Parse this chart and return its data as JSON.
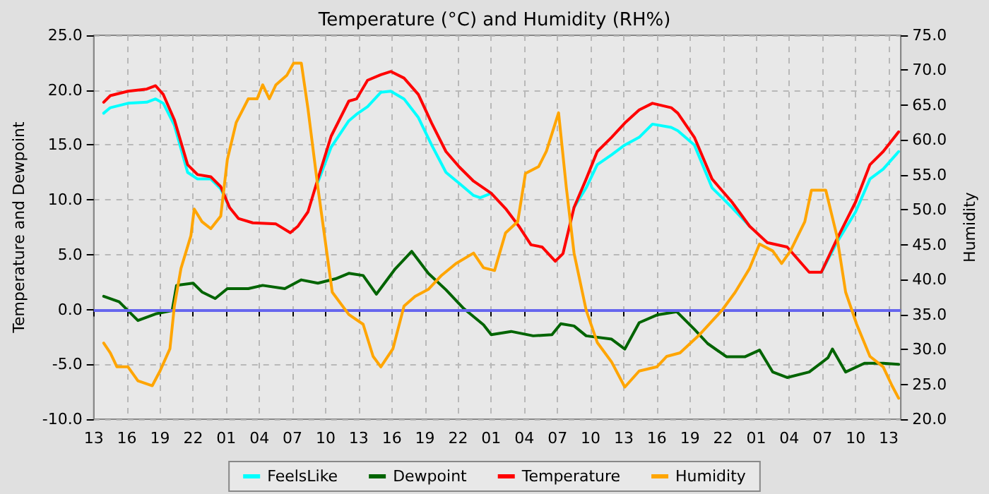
{
  "chart_data": {
    "type": "line",
    "title": "Temperature (°C) and Humidity (RH%)",
    "ylabel": "Temperature and Dewpoint",
    "y2label": "Humidity",
    "xlim": [
      "--01-01T13:00",
      "--01-04T14:06"
    ],
    "xticks": [
      {
        "value": "--01-01T13:00",
        "label": "13"
      },
      {
        "value": "--01-01T16:00",
        "label": "16"
      },
      {
        "value": "--01-01T19:00",
        "label": "19"
      },
      {
        "value": "--01-01T22:00",
        "label": "22"
      },
      {
        "value": "--01-02T01:00",
        "label": "01"
      },
      {
        "value": "--01-02T04:00",
        "label": "04"
      },
      {
        "value": "--01-02T07:00",
        "label": "07"
      },
      {
        "value": "--01-02T10:00",
        "label": "10"
      },
      {
        "value": "--01-02T13:00",
        "label": "13"
      },
      {
        "value": "--01-02T16:00",
        "label": "16"
      },
      {
        "value": "--01-02T19:00",
        "label": "19"
      },
      {
        "value": "--01-02T22:00",
        "label": "22"
      },
      {
        "value": "--01-03T01:00",
        "label": "01"
      },
      {
        "value": "--01-03T04:00",
        "label": "04"
      },
      {
        "value": "--01-03T07:00",
        "label": "07"
      },
      {
        "value": "--01-03T10:00",
        "label": "10"
      },
      {
        "value": "--01-03T13:00",
        "label": "13"
      },
      {
        "value": "--01-03T16:00",
        "label": "16"
      },
      {
        "value": "--01-03T19:00",
        "label": "19"
      },
      {
        "value": "--01-03T22:00",
        "label": "22"
      },
      {
        "value": "--01-04T01:00",
        "label": "01"
      },
      {
        "value": "--01-04T04:00",
        "label": "04"
      },
      {
        "value": "--01-04T07:00",
        "label": "07"
      },
      {
        "value": "--01-04T10:00",
        "label": "10"
      },
      {
        "value": "--01-04T13:00",
        "label": "13"
      }
    ],
    "ylim": [
      -10,
      25
    ],
    "yticks": [
      {
        "value": -10,
        "label": "-10.0"
      },
      {
        "value": -5,
        "label": "-5.0"
      },
      {
        "value": 0,
        "label": "0.0"
      },
      {
        "value": 5,
        "label": "5.0"
      },
      {
        "value": 10,
        "label": "10.0"
      },
      {
        "value": 15,
        "label": "15.0"
      },
      {
        "value": 20,
        "label": "20.0"
      },
      {
        "value": 25,
        "label": "25.0"
      }
    ],
    "y2lim": [
      20,
      75
    ],
    "y2ticks": [
      {
        "value": 20,
        "label": "20.0"
      },
      {
        "value": 25,
        "label": "25.0"
      },
      {
        "value": 30,
        "label": "30.0"
      },
      {
        "value": 35,
        "label": "35.0"
      },
      {
        "value": 40,
        "label": "40.0"
      },
      {
        "value": 45,
        "label": "45.0"
      },
      {
        "value": 50,
        "label": "50.0"
      },
      {
        "value": 55,
        "label": "55.0"
      },
      {
        "value": 60,
        "label": "60.0"
      },
      {
        "value": 65,
        "label": "65.0"
      },
      {
        "value": 70,
        "label": "70.0"
      },
      {
        "value": 75,
        "label": "75.0"
      }
    ],
    "grid": true,
    "legend": "bottom",
    "marker": "none",
    "line_style": "solid",
    "ref_lines": [
      {
        "axis": "y",
        "value": 0,
        "color": "#6666ee"
      }
    ],
    "series": [
      {
        "name": "FeelsLike",
        "color": "#00ffff",
        "x": [
          "--01-01T13:54",
          "--01-01T14:30",
          "--01-01T16:06",
          "--01-01T17:48",
          "--01-01T18:36",
          "--01-01T19:18",
          "--01-01T20:18",
          "--01-01T21:30",
          "--01-01T22:24",
          "--01-01T23:36",
          "--01-02T00:30",
          "--01-02T01:18",
          "--01-02T02:06",
          "--01-02T03:24",
          "--01-02T05:30",
          "--01-02T06:48",
          "--01-02T07:30",
          "--01-02T08:24",
          "--01-02T09:18",
          "--01-02T10:30",
          "--01-02T12:06",
          "--01-02T12:48",
          "--01-02T13:48",
          "--01-02T15:00",
          "--01-02T15:54",
          "--01-02T17:06",
          "--01-02T18:24",
          "--01-02T19:36",
          "--01-02T20:54",
          "--01-02T22:06",
          "--01-02T23:24",
          "--01-03T00:00",
          "--01-03T01:00",
          "--01-03T02:18",
          "--01-03T03:30",
          "--01-03T04:36",
          "--01-03T05:36",
          "--01-03T06:48",
          "--01-03T07:30",
          "--01-03T08:30",
          "--01-03T09:36",
          "--01-03T10:36",
          "--01-03T11:54",
          "--01-03T13:06",
          "--01-03T14:24",
          "--01-03T15:36",
          "--01-03T17:18",
          "--01-03T17:54",
          "--01-03T19:24",
          "--01-03T21:00",
          "--01-03T22:48",
          "--01-04T00:24",
          "--01-04T02:00",
          "--01-04T03:48",
          "--01-04T05:48",
          "--01-04T06:54",
          "--01-04T08:18",
          "--01-04T10:00",
          "--01-04T11:18",
          "--01-04T12:30",
          "--01-04T13:54"
        ],
        "values": [
          17.9,
          18.4,
          18.8,
          18.9,
          19.2,
          18.8,
          16.8,
          12.5,
          11.9,
          11.9,
          11.0,
          9.3,
          null,
          null,
          null,
          null,
          null,
          null,
          11.6,
          14.8,
          17.2,
          17.8,
          18.5,
          19.8,
          19.9,
          19.2,
          17.5,
          15.0,
          12.5,
          11.5,
          10.4,
          10.2,
          10.6,
          null,
          null,
          null,
          null,
          null,
          null,
          9.3,
          11.1,
          13.2,
          14.1,
          15.0,
          15.7,
          16.9,
          16.6,
          16.3,
          15.0,
          11.1,
          9.3,
          7.6,
          null,
          null,
          null,
          3.4,
          6.1,
          8.9,
          11.9,
          12.8,
          14.4
        ]
      },
      {
        "name": "Dewpoint",
        "color": "#006400",
        "x": [
          "--01-01T13:54",
          "--01-01T15:18",
          "--01-01T17:00",
          "--01-01T18:36",
          "--01-01T20:06",
          "--01-01T20:30",
          "--01-01T22:00",
          "--01-01T22:48",
          "--01-02T00:00",
          "--01-02T01:06",
          "--01-02T03:00",
          "--01-02T04:18",
          "--01-02T06:18",
          "--01-02T07:48",
          "--01-02T09:18",
          "--01-02T10:54",
          "--01-02T12:06",
          "--01-02T13:24",
          "--01-02T14:36",
          "--01-02T16:18",
          "--01-02T17:48",
          "--01-02T19:18",
          "--01-02T20:54",
          "--01-02T22:30",
          "--01-03T00:18",
          "--01-03T01:00",
          "--01-03T02:48",
          "--01-03T04:48",
          "--01-03T06:30",
          "--01-03T07:18",
          "--01-03T08:30",
          "--01-03T09:36",
          "--01-03T11:54",
          "--01-03T13:06",
          "--01-03T14:24",
          "--01-03T16:00",
          "--01-03T17:48",
          "--01-03T19:24",
          "--01-03T20:36",
          "--01-03T22:18",
          "--01-04T00:00",
          "--01-04T01:18",
          "--01-04T02:30",
          "--01-04T03:48",
          "--01-04T05:48",
          "--01-04T07:30",
          "--01-04T07:54",
          "--01-04T09:06",
          "--01-04T10:48",
          "--01-04T12:30",
          "--01-04T13:54"
        ],
        "values": [
          1.2,
          0.7,
          -1.0,
          -0.4,
          -0.1,
          2.2,
          2.4,
          1.6,
          1.0,
          1.9,
          1.9,
          2.2,
          1.9,
          2.7,
          2.4,
          2.8,
          3.3,
          3.1,
          1.4,
          3.7,
          5.3,
          3.3,
          1.8,
          0.1,
          -1.4,
          -2.3,
          -2.0,
          -2.4,
          -2.3,
          -1.3,
          -1.5,
          -2.4,
          -2.7,
          -3.6,
          -1.2,
          -0.5,
          -0.2,
          -1.8,
          -3.1,
          -4.3,
          -4.3,
          -3.7,
          -5.7,
          -6.2,
          -5.7,
          -4.4,
          -3.6,
          -5.7,
          -4.9,
          -4.9,
          -5.0
        ]
      },
      {
        "name": "Temperature",
        "color": "#ff0000",
        "x": [
          "--01-01T13:54",
          "--01-01T14:30",
          "--01-01T16:06",
          "--01-01T17:48",
          "--01-01T18:36",
          "--01-01T19:18",
          "--01-01T20:18",
          "--01-01T21:30",
          "--01-01T22:24",
          "--01-01T23:36",
          "--01-02T00:30",
          "--01-02T01:18",
          "--01-02T02:06",
          "--01-02T03:24",
          "--01-02T05:30",
          "--01-02T06:48",
          "--01-02T07:30",
          "--01-02T08:24",
          "--01-02T09:18",
          "--01-02T10:30",
          "--01-02T12:06",
          "--01-02T12:48",
          "--01-02T13:48",
          "--01-02T15:00",
          "--01-02T15:54",
          "--01-02T17:06",
          "--01-02T18:24",
          "--01-02T19:36",
          "--01-02T20:54",
          "--01-02T22:06",
          "--01-02T23:24",
          "--01-03T01:00",
          "--01-03T02:18",
          "--01-03T03:30",
          "--01-03T04:36",
          "--01-03T05:36",
          "--01-03T06:48",
          "--01-03T07:30",
          "--01-03T08:30",
          "--01-03T09:36",
          "--01-03T10:36",
          "--01-03T11:54",
          "--01-03T13:06",
          "--01-03T14:24",
          "--01-03T15:36",
          "--01-03T17:18",
          "--01-03T17:54",
          "--01-03T19:24",
          "--01-03T21:00",
          "--01-03T22:48",
          "--01-04T00:24",
          "--01-04T02:00",
          "--01-04T03:48",
          "--01-04T05:48",
          "--01-04T06:54",
          "--01-04T08:18",
          "--01-04T10:00",
          "--01-04T11:18",
          "--01-04T12:30",
          "--01-04T13:54"
        ],
        "values": [
          18.9,
          19.5,
          19.9,
          20.1,
          20.4,
          19.6,
          17.3,
          13.2,
          12.3,
          12.1,
          11.2,
          9.3,
          8.3,
          7.9,
          7.8,
          7.0,
          7.6,
          8.9,
          11.9,
          15.8,
          19.0,
          19.2,
          20.9,
          21.4,
          21.7,
          21.1,
          19.6,
          17.0,
          14.4,
          13.0,
          11.7,
          10.6,
          9.2,
          7.6,
          5.9,
          5.7,
          4.4,
          5.1,
          9.3,
          11.9,
          14.4,
          15.7,
          17.0,
          18.2,
          18.8,
          18.4,
          17.9,
          15.7,
          11.9,
          9.8,
          7.6,
          6.1,
          5.7,
          3.4,
          3.4,
          6.4,
          9.8,
          13.2,
          14.4,
          16.2
        ]
      },
      {
        "name": "Humidity",
        "color": "#ffa500",
        "axis": "y2",
        "x": [
          "--01-01T13:54",
          "--01-01T14:30",
          "--01-01T15:06",
          "--01-01T16:06",
          "--01-01T17:00",
          "--01-01T18:18",
          "--01-01T19:00",
          "--01-01T19:54",
          "--01-01T20:18",
          "--01-01T20:54",
          "--01-01T21:48",
          "--01-01T22:06",
          "--01-01T22:48",
          "--01-01T23:36",
          "--01-02T00:30",
          "--01-02T01:06",
          "--01-02T01:54",
          "--01-02T03:00",
          "--01-02T03:48",
          "--01-02T04:18",
          "--01-02T04:54",
          "--01-02T05:30",
          "--01-02T06:30",
          "--01-02T07:06",
          "--01-02T07:48",
          "--01-02T08:24",
          "--01-02T09:18",
          "--01-02T09:54",
          "--01-02T10:36",
          "--01-02T12:06",
          "--01-02T13:24",
          "--01-02T14:18",
          "--01-02T15:00",
          "--01-02T16:06",
          "--01-02T17:06",
          "--01-02T18:06",
          "--01-02T19:18",
          "--01-02T20:30",
          "--01-02T21:48",
          "--01-02T23:24",
          "--01-03T00:18",
          "--01-03T01:18",
          "--01-03T02:18",
          "--01-03T03:24",
          "--01-03T04:06",
          "--01-03T05:18",
          "--01-03T06:00",
          "--01-03T07:06",
          "--01-03T07:48",
          "--01-03T08:30",
          "--01-03T09:36",
          "--01-03T10:36",
          "--01-03T11:54",
          "--01-03T13:06",
          "--01-03T14:24",
          "--01-03T16:00",
          "--01-03T16:54",
          "--01-03T18:06",
          "--01-03T19:48",
          "--01-03T21:54",
          "--01-03T23:06",
          "--01-04T00:24",
          "--01-04T01:18",
          "--01-04T02:30",
          "--01-04T03:18",
          "--01-04T04:06",
          "--01-04T05:24",
          "--01-04T06:00",
          "--01-04T07:18",
          "--01-04T08:18",
          "--01-04T09:06",
          "--01-04T10:06",
          "--01-04T11:18",
          "--01-04T12:30",
          "--01-04T13:18",
          "--01-04T13:54"
        ],
        "values": [
          30.9,
          29.5,
          27.5,
          27.5,
          25.5,
          24.8,
          26.9,
          30.1,
          36.2,
          41.6,
          46.3,
          50.1,
          48.3,
          47.3,
          49.1,
          57.2,
          62.5,
          65.9,
          65.9,
          67.9,
          65.9,
          67.9,
          69.3,
          71.0,
          71.0,
          64.5,
          53.2,
          46.3,
          38.2,
          35.0,
          33.6,
          29.0,
          27.5,
          30.1,
          36.2,
          37.6,
          38.6,
          40.6,
          42.3,
          43.8,
          41.7,
          41.3,
          46.7,
          48.3,
          55.2,
          56.2,
          58.4,
          63.9,
          53.2,
          43.8,
          35.6,
          31.0,
          28.2,
          24.6,
          26.9,
          27.5,
          29.0,
          29.5,
          32.0,
          35.6,
          38.2,
          41.6,
          45.1,
          44.1,
          42.3,
          44.1,
          48.3,
          52.8,
          52.8,
          46.3,
          38.2,
          33.6,
          29.0,
          27.5,
          24.8,
          23.0
        ]
      }
    ]
  }
}
